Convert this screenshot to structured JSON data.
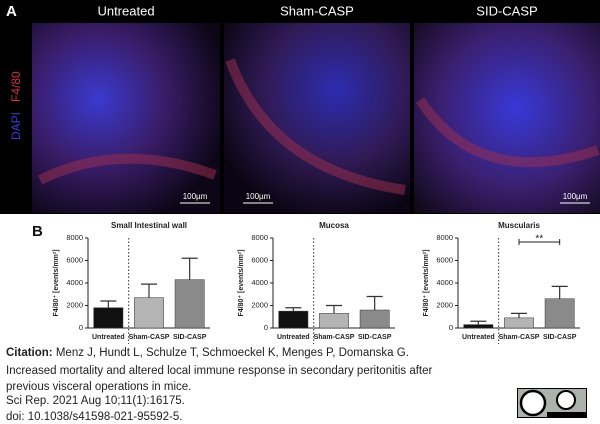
{
  "panel_a": {
    "label": "A",
    "columns": [
      "Untreated",
      "Sham-CASP",
      "SID-CASP"
    ],
    "stain_blue": "DAPI",
    "stain_red": "F4/80",
    "scale_bar": "100µm"
  },
  "panel_b": {
    "label": "B"
  },
  "chart_data": [
    {
      "type": "bar",
      "title": "Small Intestinal wall",
      "ylabel": "F4/80⁺ [events/mm²]",
      "categories": [
        "Untreated",
        "Sham-CASP",
        "SID-CASP"
      ],
      "values": [
        1800,
        2700,
        4300
      ],
      "errors": [
        600,
        1200,
        1900
      ],
      "colors": [
        "#111111",
        "#b4b4b4",
        "#8a8a8a"
      ],
      "ylim": [
        0,
        8000
      ],
      "yticks": [
        0,
        2000,
        4000,
        6000,
        8000
      ]
    },
    {
      "type": "bar",
      "title": "Mucosa",
      "ylabel": "F4/80⁺ [events/mm²]",
      "categories": [
        "Untreated",
        "Sham-CASP",
        "SID-CASP"
      ],
      "values": [
        1500,
        1300,
        1600
      ],
      "errors": [
        300,
        700,
        1200
      ],
      "colors": [
        "#111111",
        "#b4b4b4",
        "#8a8a8a"
      ],
      "ylim": [
        0,
        8000
      ],
      "yticks": [
        0,
        2000,
        4000,
        6000,
        8000
      ]
    },
    {
      "type": "bar",
      "title": "Muscularis",
      "ylabel": "F4/80⁺ [events/mm²]",
      "categories": [
        "Untreated",
        "Sham-CASP",
        "SID-CASP"
      ],
      "values": [
        300,
        900,
        2600
      ],
      "errors": [
        300,
        400,
        1100
      ],
      "colors": [
        "#111111",
        "#b4b4b4",
        "#8a8a8a"
      ],
      "ylim": [
        0,
        8000
      ],
      "yticks": [
        0,
        2000,
        4000,
        6000,
        8000
      ],
      "annotation": "**"
    }
  ],
  "citation": {
    "label": "Citation:",
    "authors": "Menz J, Hundt L, Schulze T, Schmoeckel K, Menges P, Domanska G.",
    "title": "Increased mortality and altered local immune response in secondary peritonitis after previous visceral operations in mice.",
    "journal": "Sci Rep. 2021 Aug 10;11(1):16175.",
    "doi": "doi: 10.1038/s41598-021-95592-5."
  }
}
